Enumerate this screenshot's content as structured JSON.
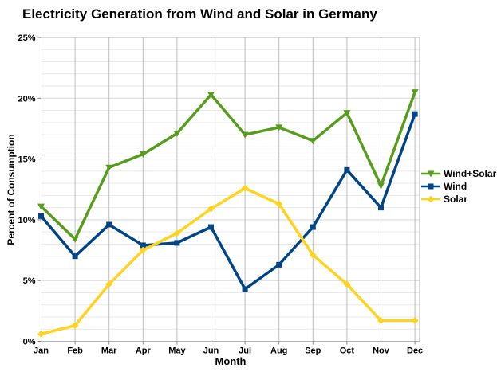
{
  "chart_data": {
    "type": "line",
    "title": "Electricity Generation from Wind and Solar in Germany",
    "xlabel": "Month",
    "ylabel": "Percent of Consumption",
    "ylim": [
      0,
      25
    ],
    "y_major_step": 5,
    "y_minor_step": 1,
    "y_tick_labels": [
      "0%",
      "5%",
      "10%",
      "15%",
      "20%",
      "25%"
    ],
    "grid": {
      "horizontal_minor": true,
      "horizontal_major": true,
      "vertical_per_category": true
    },
    "legend_position": "right",
    "categories": [
      "Jan",
      "Feb",
      "Mar",
      "Apr",
      "May",
      "Jun",
      "Jul",
      "Aug",
      "Sep",
      "Oct",
      "Nov",
      "Dec"
    ],
    "series": [
      {
        "name": "Wind+Solar",
        "color": "#579D1C",
        "marker": "triangle-down",
        "values": [
          11.1,
          8.4,
          14.3,
          15.4,
          17.1,
          20.3,
          17.0,
          17.6,
          16.5,
          18.8,
          12.8,
          20.5
        ]
      },
      {
        "name": "Wind",
        "color": "#004586",
        "marker": "square",
        "values": [
          10.3,
          7.0,
          9.6,
          7.9,
          8.1,
          9.4,
          4.3,
          6.3,
          9.4,
          14.1,
          11.0,
          18.7
        ]
      },
      {
        "name": "Solar",
        "color": "#FFD320",
        "marker": "diamond",
        "values": [
          0.6,
          1.3,
          4.7,
          7.5,
          8.9,
          10.9,
          12.6,
          11.3,
          7.1,
          4.7,
          1.7,
          1.7
        ]
      }
    ],
    "colors": {
      "grid_minor": "#e9e9e9",
      "grid_major": "#d9d9d9",
      "grid_vertical": "#bdbdbd",
      "plot_border": "#b3b3b3",
      "tick": "#808080",
      "text": "#000000",
      "background": "#ffffff"
    }
  }
}
